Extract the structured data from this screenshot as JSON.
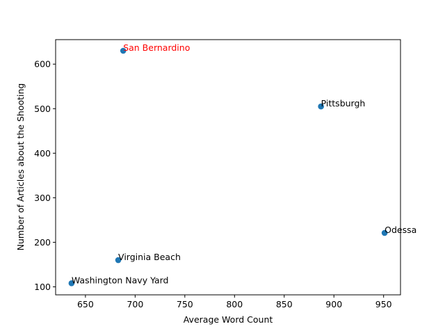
{
  "chart_data": {
    "type": "scatter",
    "title": "",
    "xlabel": "Average Word Count",
    "ylabel": "Number of Articles about the Shooting",
    "xlim": [
      620,
      967
    ],
    "ylim": [
      82,
      655
    ],
    "xticks": [
      650,
      700,
      750,
      800,
      850,
      900,
      950
    ],
    "yticks": [
      100,
      200,
      300,
      400,
      500,
      600
    ],
    "grid": false,
    "marker_color": "#1f77b4",
    "points": [
      {
        "label": "San Bernardino",
        "x": 688,
        "y": 630,
        "label_color": "#ff0000"
      },
      {
        "label": "Pittsburgh",
        "x": 887,
        "y": 505,
        "label_color": "#000000"
      },
      {
        "label": "Odessa",
        "x": 951,
        "y": 221,
        "label_color": "#000000"
      },
      {
        "label": "Virginia Beach",
        "x": 683,
        "y": 160,
        "label_color": "#000000"
      },
      {
        "label": "Washington Navy Yard",
        "x": 636,
        "y": 108,
        "label_color": "#000000"
      }
    ]
  }
}
